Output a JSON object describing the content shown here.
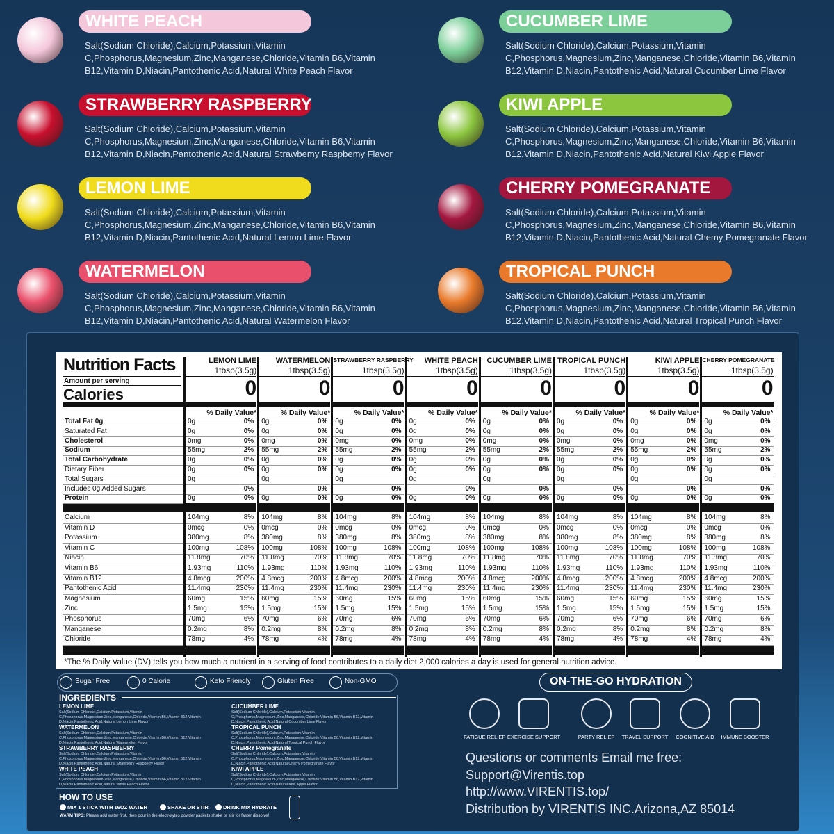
{
  "flavors": [
    {
      "name": "WHITE PEACH",
      "color": "#f4c7da",
      "text": "Salt(Sodium Chloride),Calcium,Potassium,Vitamin C,Phosphorus,Magnesium,Zinc,Manganese,Chloride,Vitamin B6,Vitamin B12,Vitamin D,Niacin,Pantothenic Acid,Natural White Peach Flavor"
    },
    {
      "name": "STRAWBERRY RASPBERRY",
      "color": "#c8102e",
      "text": "Salt(Sodium Chloride),Calcium,Potassium,Vitamin C,Phosphorus,Magnesium,Zinc,Manganese,Chloride,Vitamin B6,Vitamin B12,Vitamin D,Niacin,Pantothenic Acid,Natural Strawbemy Raspbemy Flavor"
    },
    {
      "name": "LEMON LIME",
      "color": "#f0dc1c",
      "text": "Salt(Sodium Chloride),Calcium,Potassium,Vitamin C,Phosphorus,Magnesium,Zinc,Manganese,Chloride,Vitamin B6,Vitamin B12,Vitamin D,Niacin,Pantothenic Acid,Natural Lemon Lime Flavor"
    },
    {
      "name": "WATERMELON",
      "color": "#e9506b",
      "text": "Salt(Sodium Chloride),Calcium,Potassium,Vitamin C,Phosphorus,Magnesium,Zinc,Manganese,Chloride,Vitamin B6,Vitamin B12,Vitamin D,Niacin,Pantothenic Acid,Natural Watermelon Flavor"
    },
    {
      "name": "CUCUMBER LIME",
      "color": "#7ccf99",
      "text": "Salt(Sodium Chloride),Calcium,Potassium,Vitamin C,Phosphorus,Magnesium,Zinc,Manganese,Chloride,Vitamin B6,Vitamin B12,Vitamin D,Niacin,Pantothenic Acid,Natural Cucumber Lime Flavor"
    },
    {
      "name": "KIWI APPLE",
      "color": "#8cc63f",
      "text": "Salt(Sodium Chloride),Calcium,Potassium,Vitamin C,Phosphorus,Magnesium,Zinc,Manganese,Chloride,Vitamin B6,Vitamin B12,Vitamin D,Niacin,Pantothenic Acid,Natural Kiwi Apple Flavor"
    },
    {
      "name": "CHERRY POMEGRANATE",
      "color": "#a3173f",
      "text": "Salt(Sodium Chloride),Calcium,Potassium,Vitamin C,Phosphorus,Magnesium,Zinc,Manganese,Chloride,Vitamin B6,Vitamin B12,Vitamin D,Niacin,Pantothenic Acid,Natural Chemy Pomegranate Flavor"
    },
    {
      "name": "TROPICAL PUNCH",
      "color": "#e97a2b",
      "text": "Salt(Sodium Chloride),Calcium,Potassium,Vitamin C,Phosphorus,Magnesium,Zinc,Manganese,Chloride,Vitamin B6,Vitamin B12,Vitamin D,Niacin,Pantothenic Acid,Natural Tropical Punch Flavor"
    }
  ],
  "nutrition": {
    "title": "Nutrition Facts",
    "amount_per_serving": "Amount per serving",
    "calories_label": "Calories",
    "dv_header": "% Daily Value*",
    "columns": [
      {
        "name": "LEMON LIME",
        "serving": "1tbsp(3.5g)",
        "calories": 0
      },
      {
        "name": "WATERMELON",
        "serving": "1tbsp(3.5g)",
        "calories": 0
      },
      {
        "name": "STRAWBERRY RASPBERRY",
        "serving": "1tbsp(3.5g)",
        "calories": 0
      },
      {
        "name": "WHITE PEACH",
        "serving": "1tbsp(3.5g)",
        "calories": 0
      },
      {
        "name": "CUCUMBER LIME",
        "serving": "1tbsp(3.5g)",
        "calories": 0
      },
      {
        "name": "TROPICAL PUNCH",
        "serving": "1tbsp(3.5g)",
        "calories": 0
      },
      {
        "name": "KIWI APPLE",
        "serving": "1tbsp(3.5g)",
        "calories": 0
      },
      {
        "name": "CHERRY POMEGRANATE",
        "serving": "1tbsp(3.5g)",
        "calories": 0
      }
    ],
    "macro_rows": [
      {
        "label": "Total Fat 0g",
        "amount": "0g",
        "dv": "0%"
      },
      {
        "label": "Saturated Fat",
        "amount": "0g",
        "dv": "0%"
      },
      {
        "label": "Cholesterol",
        "amount": "0mg",
        "dv": "0%"
      },
      {
        "label": "Sodium",
        "amount": "55mg",
        "dv": "2%"
      },
      {
        "label": "Total Carbohydrate",
        "amount": "0g",
        "dv": "0%"
      },
      {
        "label": "Dietary Fiber",
        "amount": "0g",
        "dv": "0%"
      },
      {
        "label": "Total Sugars",
        "amount": "0g"
      },
      {
        "label": "Includes 0g Added Sugars",
        "dv": "0%"
      },
      {
        "label": "Protein",
        "amount": "0g",
        "dv": "0%"
      }
    ],
    "micro_rows": [
      {
        "label": "Calcium",
        "amount": "104mg",
        "dv": "8%"
      },
      {
        "label": "Vitamin D",
        "amount": "0mcg",
        "dv": "0%"
      },
      {
        "label": "Potassium",
        "amount": "380mg",
        "dv": "8%"
      },
      {
        "label": "Vitamin C",
        "amount": "100mg",
        "dv": "108%"
      },
      {
        "label": "Niacin",
        "amount": "11.8mg",
        "dv": "70%"
      },
      {
        "label": "Vitamin B6",
        "amount": "1.93mg",
        "dv": "110%"
      },
      {
        "label": "Vitamin B12",
        "amount": "4.8mcg",
        "dv": "200%"
      },
      {
        "label": "Pantothenic Acid",
        "amount": "11.4mg",
        "dv": "230%"
      },
      {
        "label": "Magnesium",
        "amount": "60mg",
        "dv": "15%"
      },
      {
        "label": "Zinc",
        "amount": "1.5mg",
        "dv": "15%"
      },
      {
        "label": "Phosphorus",
        "amount": "70mg",
        "dv": "6%"
      },
      {
        "label": "Manganese",
        "amount": "0.2mg",
        "dv": "8%"
      },
      {
        "label": "Chloride",
        "amount": "78mg",
        "dv": "4%"
      }
    ],
    "footnote": "*The % Daily Value (DV) tells you how much a nutrient in a serving  of food contributes to a daily diet.2,000 calories a day is used  for general nutrition advice."
  },
  "badges": [
    "Sugar Free",
    "0 Calorie",
    "Keto Friendly",
    "Gluten Free",
    "Non-GMO"
  ],
  "ingredients": {
    "title": "INGREDIENTS",
    "items": [
      {
        "name": "LEMON LIME",
        "text": "Salt(Sodium Chloride),Calcium,Potassium,Vitamin C,Phosphorus,Magnesium,Zinc,Manganese,Chloride,Vitamin B6,Vitamin B12,Vitamin D,Niacin,Pantothenic Acid,Natural Lemon Lime Flavor"
      },
      {
        "name": "WATERMELON",
        "text": "Salt(Sodium Chloride),Calcium,Potassium,Vitamin C,Phosphorus,Magnesium,Zinc,Manganese,Chloride,Vitamin B6,Vitamin B12,Vitamin D,Niacin,Pantothenic Acid,Natural Watermelon Flavor"
      },
      {
        "name": "STRAWBERRY RASPBERRY",
        "text": "Salt(Sodium Chloride),Calcium,Potassium,Vitamin C,Phosphorus,Magnesium,Zinc,Manganese,Chloride,Vitamin B6,Vitamin B12,Vitamin D,Niacin,Pantothenic Acid,Natural Strawberry Raspberry Flavor"
      },
      {
        "name": "WHITE PEACH",
        "text": "Salt(Sodium Chloride),Calcium,Potassium,Vitamin C,Phosphorus,Magnesium,Zinc,Manganese,Chloride,Vitamin B6,Vitamin B12,Vitamin D,Niacin,Pantothenic Acid,Natural White Peach Flavor"
      },
      {
        "name": "CUCUMBER LIME",
        "text": "Salt(Sodium Chloride),Calcium,Potassium,Vitamin C,Phosphorus,Magnesium,Zinc,Manganese,Chloride,Vitamin B6,Vitamin B12,Vitamin D,Niacin,Pantothenic Acid,Natural Cucumber Lime Flavor"
      },
      {
        "name": "TROPICAL PUNCH",
        "text": "Salt(Sodium Chloride),Calcium,Potassium,Vitamin C,Phosphorus,Magnesium,Zinc,Manganese,Chloride,Vitamin B6,Vitamin B12,Vitamin D,Niacin,Pantothenic Acid,Natural Tropical Punch Flavor"
      },
      {
        "name": "CHERRY Pomegranate",
        "text": "Salt(Sodium Chloride),Calcium,Potassium,Vitamin C,Phosphorus,Magnesium,Zinc,Manganese,Chloride,Vitamin B6,Vitamin B12,Vitamin D,Niacin,Pantothenic Acid,Natural Cherry Pomegranate Flavor"
      },
      {
        "name": "KIWI APPLE",
        "text": "Salt(Sodium Chloride),Calcium,Potassium,Vitamin C,Phosphorus,Magnesium,Zinc,Manganese,Chloride,Vitamin B6,Vitamin B12,Vitamin D,Niacin,Pantothenic Acid,Natural Kiwi Apple Flavor"
      }
    ]
  },
  "how_to_use": {
    "title": "HOW TO USE",
    "steps": [
      "MIX 1 STICK WITH 16OZ WATER",
      "SHAKE OR STIR",
      "DRINK MIX HYDRATE"
    ],
    "tips_label": "WARM TIPS:",
    "tips": "Please add water first, then pour in the electrolytes powder packets shake or stir for  faster dissolve!"
  },
  "hydration": {
    "title": "ON-THE-GO HYDRATION",
    "benefits": [
      "FATIGUE RELIEF",
      "EXERCISE SUPPORT",
      "PARTY RELIEF",
      "TRAVEL SUPPORT",
      "COGNITIVE AID",
      "IMMUNE BOOSTER"
    ]
  },
  "contact": [
    "Questions or comments Email me free:",
    "Support@Virentis.top",
    "http://www.VIRENTIS.top/",
    "Distribution by VIRENTIS INC.Arizona,AZ 85014"
  ]
}
